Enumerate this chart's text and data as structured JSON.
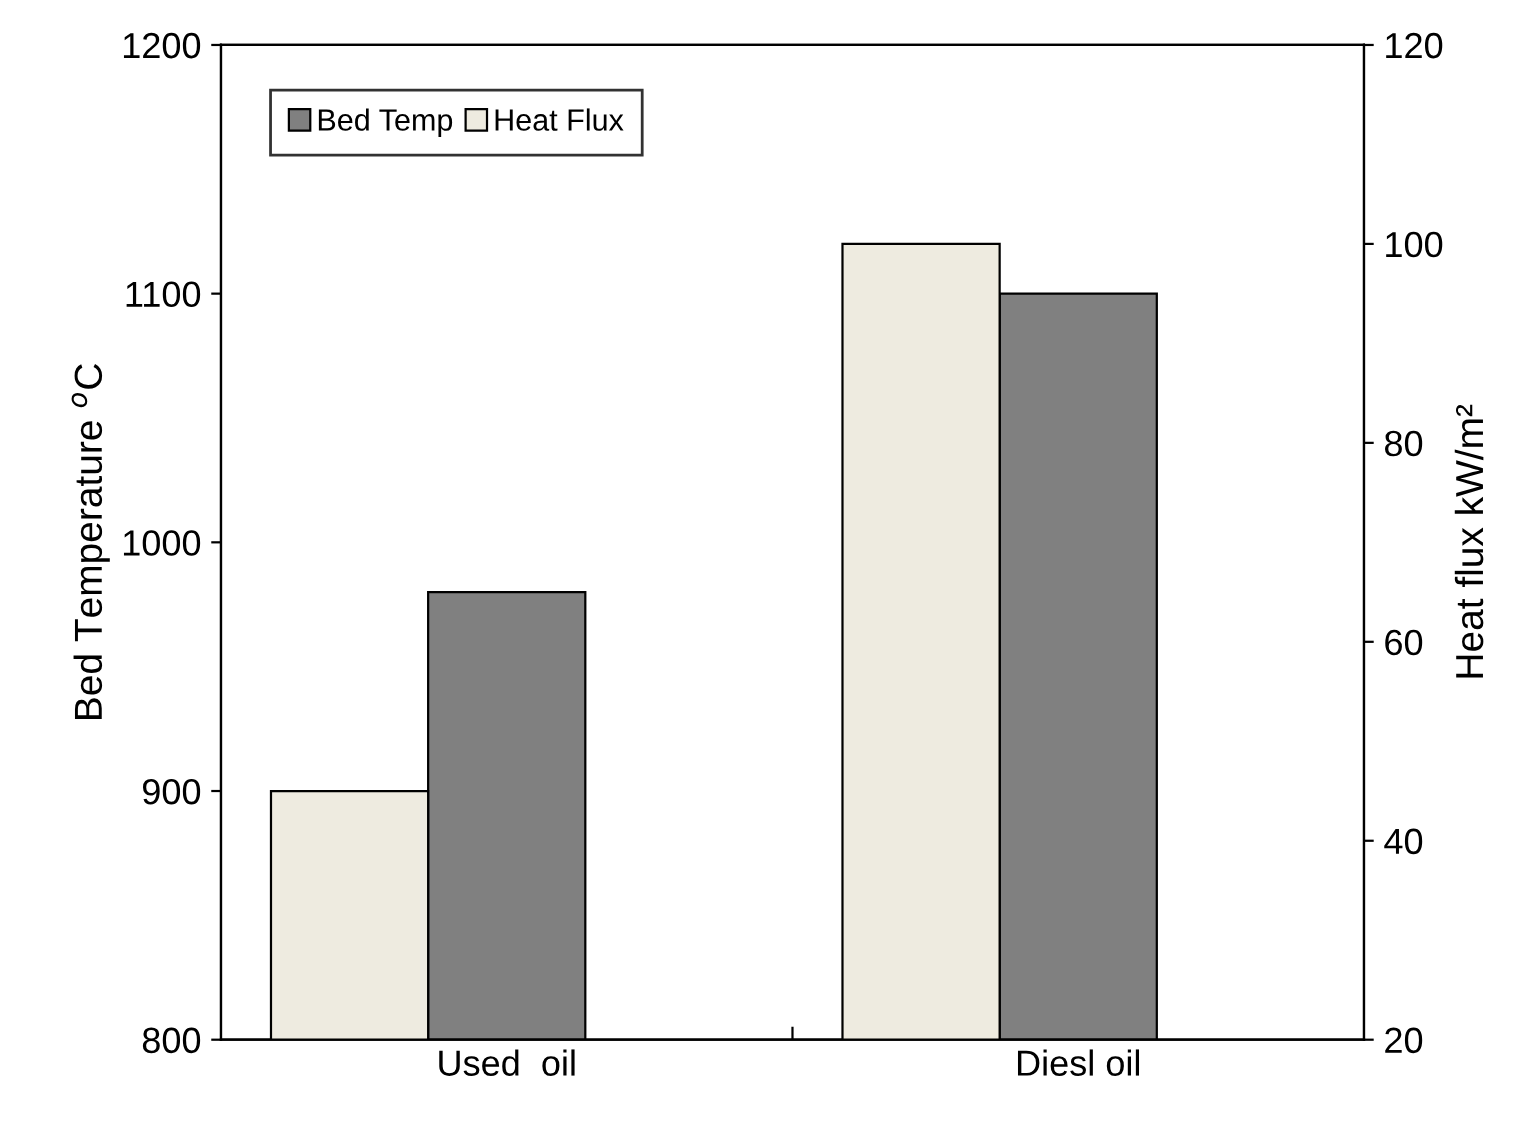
{
  "chart_data": {
    "type": "bar",
    "categories": [
      "Used  oil",
      "Diesl oil"
    ],
    "series": [
      {
        "name": "Bed Temp",
        "color": "#808080",
        "values": [
          980,
          1100
        ]
      },
      {
        "name": "Heat Flux",
        "color": "#eeebe0",
        "values": [
          45,
          100
        ],
        "axis": "y2"
      }
    ],
    "ylabel": "Bed Temperature $^{o}$C",
    "y2label": "Heat flux kW/m²",
    "ylim": [
      800,
      1200
    ],
    "yticks": [
      800,
      900,
      1000,
      1100,
      1200
    ],
    "y2lim": [
      20,
      120
    ],
    "y2ticks": [
      20,
      40,
      60,
      80,
      100,
      120
    ],
    "legend": "top left",
    "grid": false
  }
}
